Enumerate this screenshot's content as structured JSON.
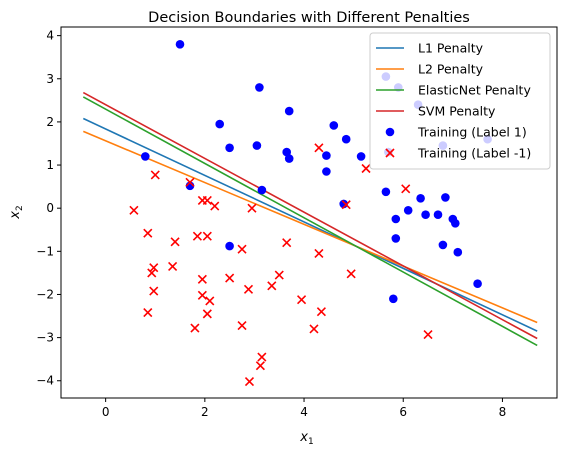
{
  "chart_data": {
    "type": "scatter",
    "title": "Decision Boundaries with Different Penalties",
    "xlabel": "x",
    "xlabel_sub": "1",
    "ylabel": "x",
    "ylabel_sub": "2",
    "xlim": [
      -0.9,
      9.1
    ],
    "ylim": [
      -4.4,
      4.2
    ],
    "xticks": [
      0,
      2,
      4,
      6,
      8
    ],
    "yticks": [
      -4,
      -3,
      -2,
      -1,
      0,
      1,
      2,
      3,
      4
    ],
    "grid": false,
    "legend_position": "upper right",
    "lines": [
      {
        "name": "L1 Penalty",
        "color": "#1f77b4",
        "x": [
          -0.45,
          8.7
        ],
        "y": [
          2.08,
          -2.85
        ]
      },
      {
        "name": "L2 Penalty",
        "color": "#ff7f0e",
        "x": [
          -0.45,
          8.7
        ],
        "y": [
          1.78,
          -2.65
        ]
      },
      {
        "name": "ElasticNet Penalty",
        "color": "#2ca02c",
        "x": [
          -0.45,
          8.7
        ],
        "y": [
          2.58,
          -3.18
        ]
      },
      {
        "name": "SVM Penalty",
        "color": "#d62728",
        "x": [
          -0.45,
          8.7
        ],
        "y": [
          2.68,
          -3.02
        ]
      }
    ],
    "scatter": [
      {
        "name": "Training (Label 1)",
        "marker": "circle",
        "color": "#0000ff",
        "points": [
          [
            1.5,
            3.8
          ],
          [
            3.1,
            2.8
          ],
          [
            2.3,
            1.95
          ],
          [
            2.5,
            1.4
          ],
          [
            3.05,
            1.45
          ],
          [
            3.65,
            1.3
          ],
          [
            3.7,
            1.15
          ],
          [
            3.7,
            2.25
          ],
          [
            0.8,
            1.2
          ],
          [
            1.7,
            0.52
          ],
          [
            3.15,
            0.42
          ],
          [
            4.45,
            1.22
          ],
          [
            4.6,
            1.92
          ],
          [
            4.85,
            1.6
          ],
          [
            5.15,
            1.2
          ],
          [
            4.45,
            0.85
          ],
          [
            4.8,
            0.1
          ],
          [
            5.65,
            3.05
          ],
          [
            5.7,
            1.3
          ],
          [
            6.3,
            2.4
          ],
          [
            5.9,
            2.8
          ],
          [
            6.8,
            1.45
          ],
          [
            7.7,
            1.6
          ],
          [
            5.65,
            0.38
          ],
          [
            6.35,
            0.23
          ],
          [
            6.1,
            -0.05
          ],
          [
            6.45,
            -0.15
          ],
          [
            6.7,
            -0.15
          ],
          [
            6.85,
            0.25
          ],
          [
            5.85,
            -0.25
          ],
          [
            7.0,
            -0.25
          ],
          [
            7.05,
            -0.35
          ],
          [
            5.85,
            -0.7
          ],
          [
            6.8,
            -0.85
          ],
          [
            7.1,
            -1.02
          ],
          [
            2.5,
            -0.88
          ],
          [
            7.5,
            -1.75
          ],
          [
            5.8,
            -2.1
          ]
        ]
      },
      {
        "name": "Training (Label -1)",
        "marker": "x",
        "color": "#ff0000",
        "points": [
          [
            0.57,
            -0.05
          ],
          [
            1.0,
            0.77
          ],
          [
            1.7,
            0.6
          ],
          [
            1.95,
            0.18
          ],
          [
            2.05,
            0.18
          ],
          [
            2.2,
            0.05
          ],
          [
            2.95,
            0.0
          ],
          [
            0.85,
            -0.58
          ],
          [
            1.4,
            -0.78
          ],
          [
            1.85,
            -0.65
          ],
          [
            2.05,
            -0.65
          ],
          [
            2.75,
            -0.95
          ],
          [
            3.65,
            -0.8
          ],
          [
            4.3,
            1.4
          ],
          [
            5.25,
            0.92
          ],
          [
            6.05,
            0.45
          ],
          [
            4.85,
            0.08
          ],
          [
            4.3,
            -1.05
          ],
          [
            0.97,
            -1.38
          ],
          [
            0.93,
            -1.5
          ],
          [
            1.35,
            -1.35
          ],
          [
            0.97,
            -1.92
          ],
          [
            1.95,
            -1.65
          ],
          [
            1.95,
            -2.02
          ],
          [
            2.1,
            -2.15
          ],
          [
            2.05,
            -2.45
          ],
          [
            2.5,
            -1.62
          ],
          [
            2.88,
            -1.88
          ],
          [
            3.35,
            -1.8
          ],
          [
            3.5,
            -1.55
          ],
          [
            3.95,
            -2.12
          ],
          [
            4.35,
            -2.4
          ],
          [
            4.2,
            -2.8
          ],
          [
            4.95,
            -1.52
          ],
          [
            0.85,
            -2.42
          ],
          [
            1.8,
            -2.78
          ],
          [
            2.75,
            -2.72
          ],
          [
            3.15,
            -3.45
          ],
          [
            3.12,
            -3.65
          ],
          [
            2.9,
            -4.02
          ],
          [
            6.5,
            -2.93
          ]
        ]
      }
    ]
  }
}
